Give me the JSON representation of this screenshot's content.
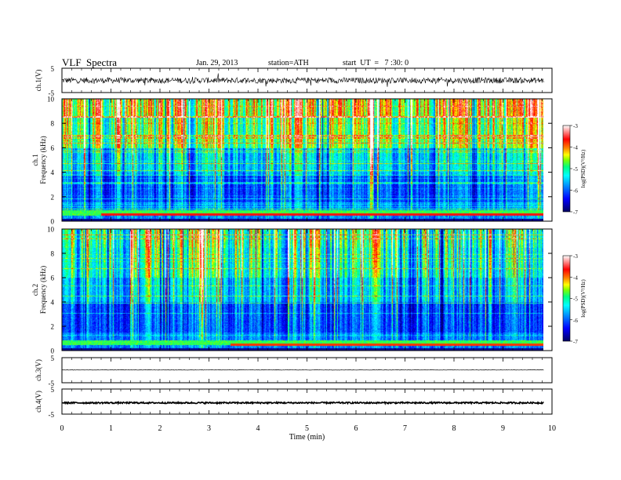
{
  "header": {
    "title": "VLF  Spectra",
    "date": "Jan. 29, 2013",
    "station": "station=ATH",
    "start": "start  UT  =   7 :30: 0"
  },
  "chart_data": [
    {
      "type": "line",
      "panel": "ch1-waveform",
      "ylabel": "ch.1(V)",
      "ylim": [
        -5,
        5
      ],
      "yticks": [
        "5",
        "-5"
      ],
      "xlim": [
        0,
        10
      ],
      "data_x_range": [
        0,
        9.83
      ],
      "approx_level": 0,
      "approx_amplitude": 1.2
    },
    {
      "type": "heatmap",
      "panel": "ch1-spectrogram",
      "ylabel": [
        "ch.1",
        "Frequency  (kHz)"
      ],
      "ylim": [
        0,
        10
      ],
      "yticks": [
        "0",
        "2",
        "4",
        "6",
        "8",
        "10"
      ],
      "xlim": [
        0,
        10
      ],
      "colorbar": {
        "label": "log(PSD)(V²/Hz)",
        "range": [
          -7,
          -3
        ],
        "ticks": [
          "-3",
          "-4",
          "-5",
          "-6",
          "-7"
        ]
      }
    },
    {
      "type": "heatmap",
      "panel": "ch2-spectrogram",
      "ylabel": [
        "ch.2",
        "Frequency  (kHz)"
      ],
      "ylim": [
        0,
        10
      ],
      "yticks": [
        "0",
        "2",
        "4",
        "6",
        "8",
        "10"
      ],
      "xlim": [
        0,
        10
      ],
      "colorbar": {
        "label": "log(PSD)(V²/Hz)",
        "range": [
          -7,
          -3
        ],
        "ticks": [
          "-3",
          "-4",
          "-5",
          "-6",
          "-7"
        ]
      }
    },
    {
      "type": "line",
      "panel": "ch3-waveform",
      "ylabel": "ch.3(V)",
      "ylim": [
        -5,
        5
      ],
      "yticks": [
        "5",
        "-5"
      ],
      "xlim": [
        0,
        10
      ],
      "data_x_range": [
        0,
        9.83
      ],
      "approx_level": 0.1
    },
    {
      "type": "line",
      "panel": "ch4-waveform",
      "ylabel": "ch.4(V)",
      "ylim": [
        -5,
        5
      ],
      "yticks": [
        "5",
        "-5"
      ],
      "xlim": [
        0,
        10
      ],
      "data_x_range": [
        0,
        9.83
      ],
      "approx_level": -0.5
    }
  ],
  "xaxis": {
    "label": "Time  (min)",
    "ticks": [
      "0",
      "1",
      "2",
      "3",
      "4",
      "5",
      "6",
      "7",
      "8",
      "9",
      "10"
    ]
  },
  "colors": {
    "scale": [
      "#000080",
      "#0000ff",
      "#00a0ff",
      "#00ffff",
      "#00ff80",
      "#80ff00",
      "#ffff00",
      "#ff8000",
      "#ff0000",
      "#ff9090",
      "#ffffff"
    ]
  }
}
